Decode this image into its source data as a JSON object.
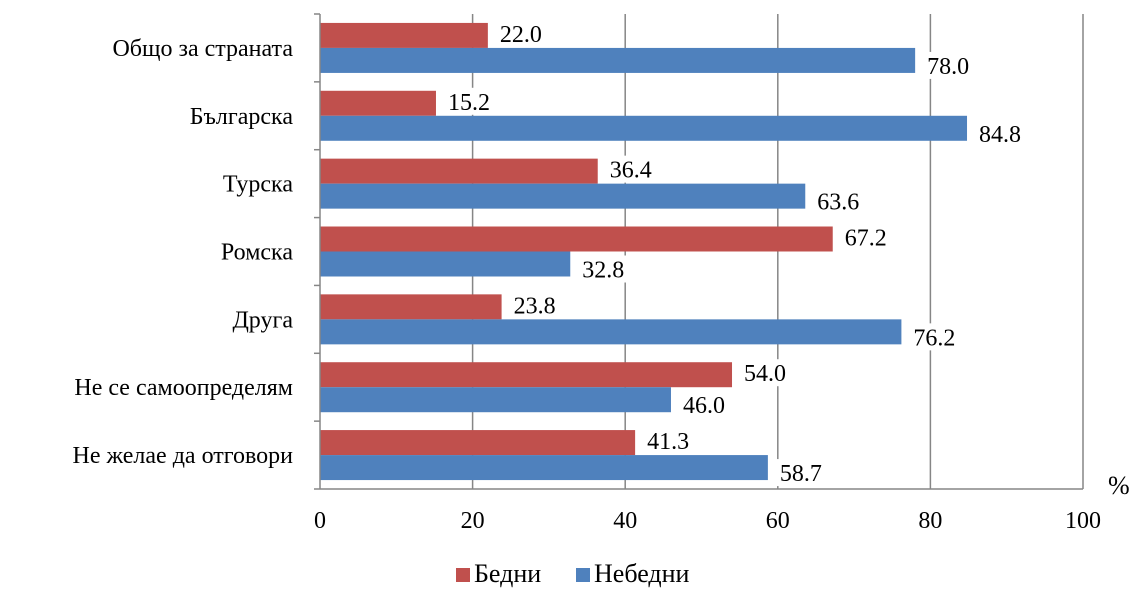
{
  "chart_data": {
    "type": "bar",
    "orientation": "horizontal",
    "categories": [
      "Общо за страната",
      "Българска",
      "Турска",
      "Ромска",
      "Друга",
      "Не се самоопределям",
      "Не желае да отговори"
    ],
    "series": [
      {
        "name": "Бедни",
        "color": "#c0504d",
        "values": [
          22.0,
          15.2,
          36.4,
          67.2,
          23.8,
          54.0,
          41.3
        ],
        "labels": [
          "22.0",
          "15.2",
          "36.4",
          "67.2",
          "23.8",
          "54.0",
          "41.3"
        ]
      },
      {
        "name": "Небедни",
        "color": "#4f81bd",
        "values": [
          78.0,
          84.8,
          63.6,
          32.8,
          76.2,
          46.0,
          58.7
        ],
        "labels": [
          "78.0",
          "84.8",
          "63.6",
          "32.8",
          "76.2",
          "46.0",
          "58.7"
        ]
      }
    ],
    "xlim": [
      0,
      100
    ],
    "xticks": [
      "0",
      "20",
      "40",
      "60",
      "80",
      "100"
    ],
    "xunit": "%",
    "grid": true,
    "legend_position": "bottom"
  }
}
